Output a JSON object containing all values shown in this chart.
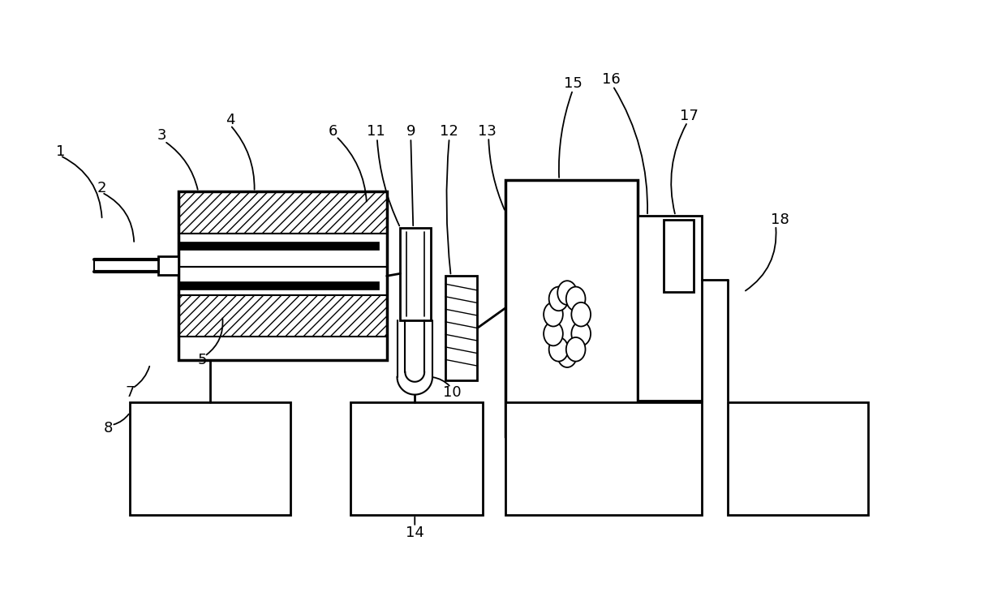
{
  "bg_color": "#ffffff",
  "lc": "#000000",
  "fs": 13
}
